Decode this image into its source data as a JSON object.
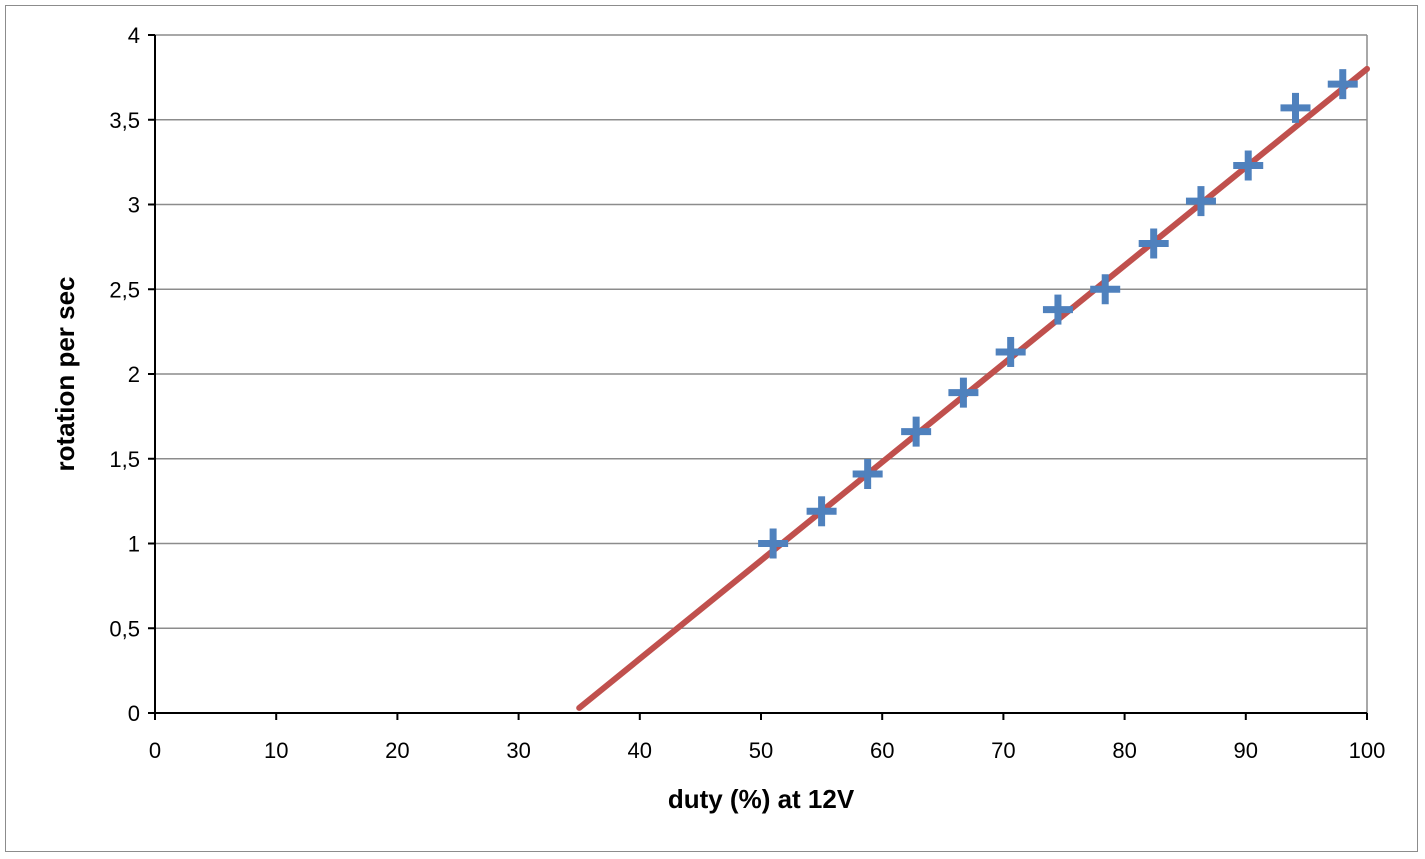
{
  "chart_data": {
    "type": "scatter",
    "title": "",
    "xlabel": "duty (%) at 12V",
    "ylabel": "rotation per sec",
    "xlim": [
      0,
      100
    ],
    "ylim": [
      0,
      4
    ],
    "x_ticks": [
      0,
      10,
      20,
      30,
      40,
      50,
      60,
      70,
      80,
      90,
      100
    ],
    "y_ticks": [
      0,
      0.5,
      1,
      1.5,
      2,
      2.5,
      3,
      3.5,
      4
    ],
    "x_tick_labels": [
      "0",
      "10",
      "20",
      "30",
      "40",
      "50",
      "60",
      "70",
      "80",
      "90",
      "100"
    ],
    "y_tick_labels": [
      "0",
      "0,5",
      "1",
      "1,5",
      "2",
      "2,5",
      "3",
      "3,5",
      "4"
    ],
    "grid": "horizontal",
    "legend": "none",
    "series": [
      {
        "marker": "plus",
        "color": "#4f81bd",
        "points": [
          {
            "x": 51,
            "y": 1.0
          },
          {
            "x": 55,
            "y": 1.19
          },
          {
            "x": 58.8,
            "y": 1.41
          },
          {
            "x": 62.8,
            "y": 1.66
          },
          {
            "x": 66.7,
            "y": 1.89
          },
          {
            "x": 70.6,
            "y": 2.13
          },
          {
            "x": 74.5,
            "y": 2.38
          },
          {
            "x": 78.4,
            "y": 2.5
          },
          {
            "x": 82.4,
            "y": 2.77
          },
          {
            "x": 86.3,
            "y": 3.02
          },
          {
            "x": 90.2,
            "y": 3.23
          },
          {
            "x": 94.1,
            "y": 3.57
          },
          {
            "x": 98,
            "y": 3.71
          }
        ]
      }
    ],
    "trendline": {
      "type": "linear",
      "color": "#c0504d",
      "points": [
        {
          "x": 35,
          "y": 0.03
        },
        {
          "x": 100,
          "y": 3.8
        }
      ]
    }
  }
}
